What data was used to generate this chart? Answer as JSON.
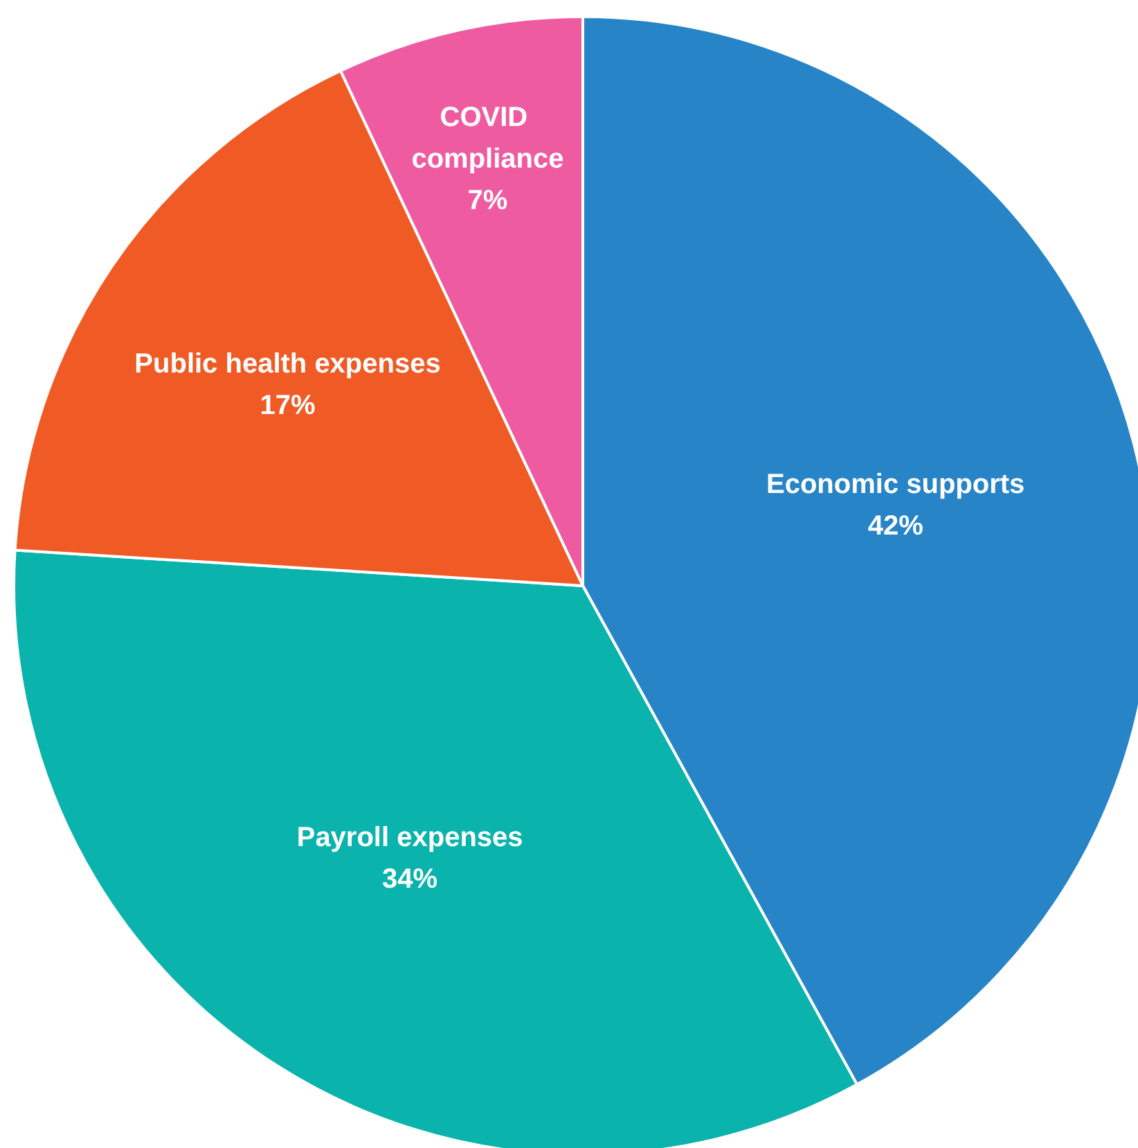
{
  "chart_data": {
    "type": "pie",
    "categories": [
      "Economic supports",
      "Payroll expenses",
      "Public health expenses",
      "COVID compliance"
    ],
    "values": [
      42,
      34,
      17,
      7
    ],
    "colors": [
      "#2784c7",
      "#0ab3ac",
      "#f05a24",
      "#ef5ba1"
    ],
    "value_labels": [
      "42%",
      "34%",
      "17%",
      "7%"
    ],
    "legend": false
  }
}
